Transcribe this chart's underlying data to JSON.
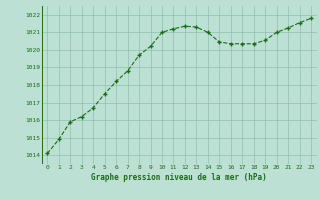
{
  "x": [
    0,
    1,
    2,
    3,
    4,
    5,
    6,
    7,
    8,
    9,
    10,
    11,
    12,
    13,
    14,
    15,
    16,
    17,
    18,
    19,
    20,
    21,
    22,
    23
  ],
  "y": [
    1014.1,
    1014.9,
    1015.9,
    1016.2,
    1016.7,
    1017.5,
    1018.2,
    1018.8,
    1019.7,
    1020.2,
    1021.0,
    1021.2,
    1021.35,
    1021.3,
    1021.0,
    1020.45,
    1020.35,
    1020.35,
    1020.35,
    1020.55,
    1021.0,
    1021.25,
    1021.55,
    1021.8
  ],
  "line_color": "#1a6b1a",
  "marker": "+",
  "marker_color": "#1a6b1a",
  "bg_color": "#bde0d4",
  "grid_color": "#8fbfb0",
  "xlabel": "Graphe pression niveau de la mer (hPa)",
  "xlabel_color": "#1a6b1a",
  "tick_color": "#1a6b1a",
  "ylim": [
    1013.5,
    1022.5
  ],
  "yticks": [
    1014,
    1015,
    1016,
    1017,
    1018,
    1019,
    1020,
    1021,
    1022
  ],
  "xlim": [
    -0.5,
    23.5
  ],
  "xticks": [
    0,
    1,
    2,
    3,
    4,
    5,
    6,
    7,
    8,
    9,
    10,
    11,
    12,
    13,
    14,
    15,
    16,
    17,
    18,
    19,
    20,
    21,
    22,
    23
  ]
}
